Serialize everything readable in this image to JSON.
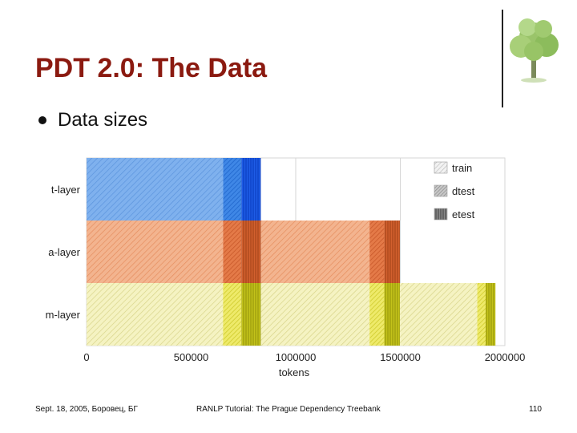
{
  "slide": {
    "title": "PDT 2.0: The Data",
    "bullet": "Data sizes"
  },
  "footer": {
    "left": "Sept. 18, 2005, Боровец, БГ",
    "center": "RANLP Tutorial: The Prague Dependency Treebank",
    "page": "110"
  },
  "colors": {
    "title": "#8b1a10",
    "t_layer": "#2f6fde",
    "a_layer": "#e0642c",
    "m_layer": "#c8c81a"
  },
  "chart_data": {
    "type": "bar",
    "orientation": "horizontal",
    "stacked": true,
    "xlabel": "tokens",
    "ylabel": "",
    "xlim": [
      0,
      2000000
    ],
    "xticks": [
      "0",
      "500000",
      "1000000",
      "1500000",
      "2000000"
    ],
    "grid": true,
    "legend_position": "top-right",
    "legend": [
      "train",
      "dtest",
      "etest"
    ],
    "rows": [
      {
        "label": "t-layer",
        "segments": [
          {
            "split": "train",
            "value": 652544
          },
          {
            "split": "dtest",
            "value": 87988
          },
          {
            "split": "etest",
            "value": 92468
          }
        ]
      },
      {
        "label": "a-layer",
        "segments": [
          {
            "split": "train",
            "value": 652544
          },
          {
            "split": "dtest",
            "value": 87988
          },
          {
            "split": "etest",
            "value": 92468
          },
          {
            "split": "train",
            "value": 520000
          },
          {
            "split": "dtest",
            "value": 70000
          },
          {
            "split": "etest",
            "value": 75000
          }
        ]
      },
      {
        "label": "m-layer",
        "segments": [
          {
            "split": "train",
            "value": 652544
          },
          {
            "split": "dtest",
            "value": 87988
          },
          {
            "split": "etest",
            "value": 92468
          },
          {
            "split": "train",
            "value": 520000
          },
          {
            "split": "dtest",
            "value": 70000
          },
          {
            "split": "etest",
            "value": 75000
          },
          {
            "split": "train",
            "value": 370000
          },
          {
            "split": "dtest",
            "value": 40000
          },
          {
            "split": "etest",
            "value": 47000
          }
        ]
      }
    ]
  }
}
